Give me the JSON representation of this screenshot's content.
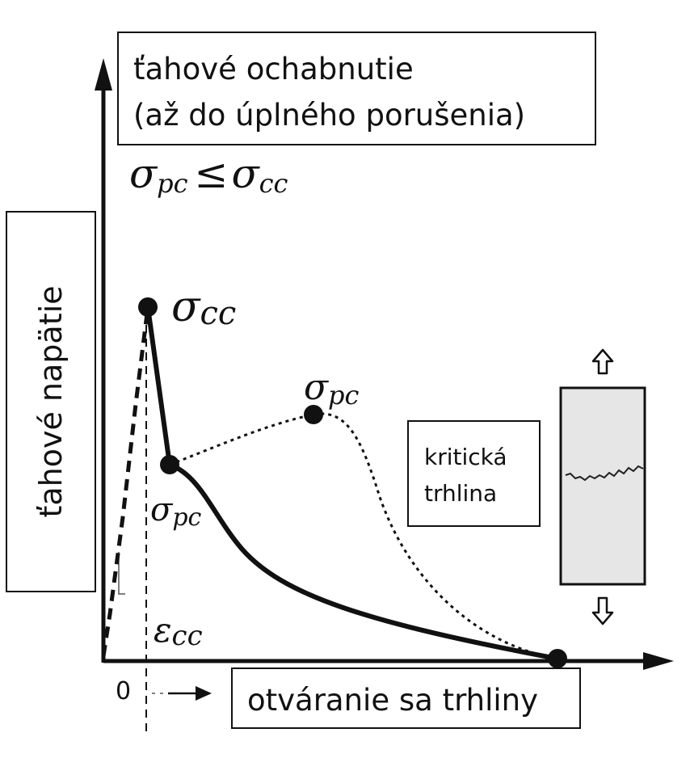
{
  "title_box": {
    "line1": "ťahové ochabnutie",
    "line2": "(až do úplného porušenia)"
  },
  "condition": {
    "left": "σ",
    "left_sub": "pc",
    "relation": "≤",
    "right": "σ",
    "right_sub": "cc"
  },
  "y_axis_label": "ťahové napätie",
  "x_axis_label": "otváranie sa trhliny",
  "origin_label": "0",
  "points": {
    "sigma_cc": {
      "symbol": "σ",
      "sub": "cc"
    },
    "sigma_pc_low": {
      "symbol": "σ",
      "sub": "pc"
    },
    "sigma_pc_high": {
      "symbol": "σ",
      "sub": "pc"
    },
    "epsilon_cc": {
      "symbol": "ε",
      "sub": "cc"
    }
  },
  "crack_box": {
    "line1": "kritická",
    "line2": "trhlina"
  },
  "colors": {
    "ink": "#111111",
    "specimen_fill": "#e6e6e6"
  },
  "icons": [
    "arrow-up-hollow-icon",
    "arrow-down-hollow-icon",
    "arrow-right-icon"
  ]
}
